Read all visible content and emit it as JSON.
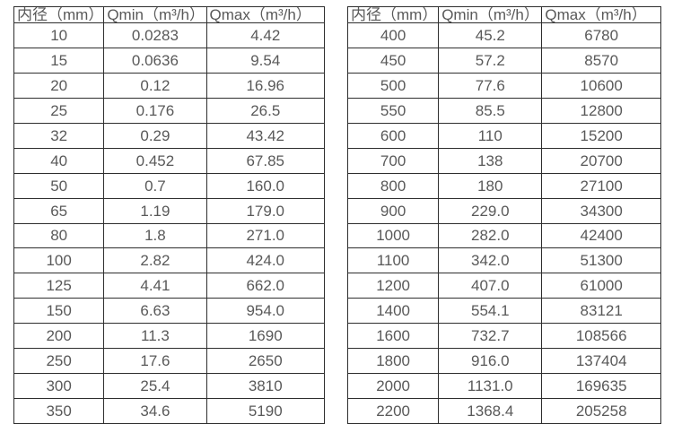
{
  "colors": {
    "text": "#595959",
    "border": "#2e2e2e",
    "background": "#ffffff"
  },
  "tables": [
    {
      "name": "flow-rate-table-small-diameters",
      "headers": [
        "内径（mm）",
        "Qmin（m³/h）",
        "Qmax（m³/h）"
      ],
      "rows": [
        [
          "10",
          "0.0283",
          "4.42"
        ],
        [
          "15",
          "0.0636",
          "9.54"
        ],
        [
          "20",
          "0.12",
          "16.96"
        ],
        [
          "25",
          "0.176",
          "26.5"
        ],
        [
          "32",
          "0.29",
          "43.42"
        ],
        [
          "40",
          "0.452",
          "67.85"
        ],
        [
          "50",
          "0.7",
          "160.0"
        ],
        [
          "65",
          "1.19",
          "179.0"
        ],
        [
          "80",
          "1.8",
          "271.0"
        ],
        [
          "100",
          "2.82",
          "424.0"
        ],
        [
          "125",
          "4.41",
          "662.0"
        ],
        [
          "150",
          "6.63",
          "954.0"
        ],
        [
          "200",
          "11.3",
          "1690"
        ],
        [
          "250",
          "17.6",
          "2650"
        ],
        [
          "300",
          "25.4",
          "3810"
        ],
        [
          "350",
          "34.6",
          "5190"
        ]
      ]
    },
    {
      "name": "flow-rate-table-large-diameters",
      "headers": [
        "内径（mm）",
        "Qmin（m³/h）",
        "Qmax（m³/h）"
      ],
      "rows": [
        [
          "400",
          "45.2",
          "6780"
        ],
        [
          "450",
          "57.2",
          "8570"
        ],
        [
          "500",
          "77.6",
          "10600"
        ],
        [
          "550",
          "85.5",
          "12800"
        ],
        [
          "600",
          "110",
          "15200"
        ],
        [
          "700",
          "138",
          "20700"
        ],
        [
          "800",
          "180",
          "27100"
        ],
        [
          "900",
          "229.0",
          "34300"
        ],
        [
          "1000",
          "282.0",
          "42400"
        ],
        [
          "1100",
          "342.0",
          "51300"
        ],
        [
          "1200",
          "407.0",
          "61000"
        ],
        [
          "1400",
          "554.1",
          "83121"
        ],
        [
          "1600",
          "732.7",
          "108566"
        ],
        [
          "1800",
          "916.0",
          "137404"
        ],
        [
          "2000",
          "1131.0",
          "169635"
        ],
        [
          "2200",
          "1368.4",
          "205258"
        ]
      ]
    }
  ]
}
